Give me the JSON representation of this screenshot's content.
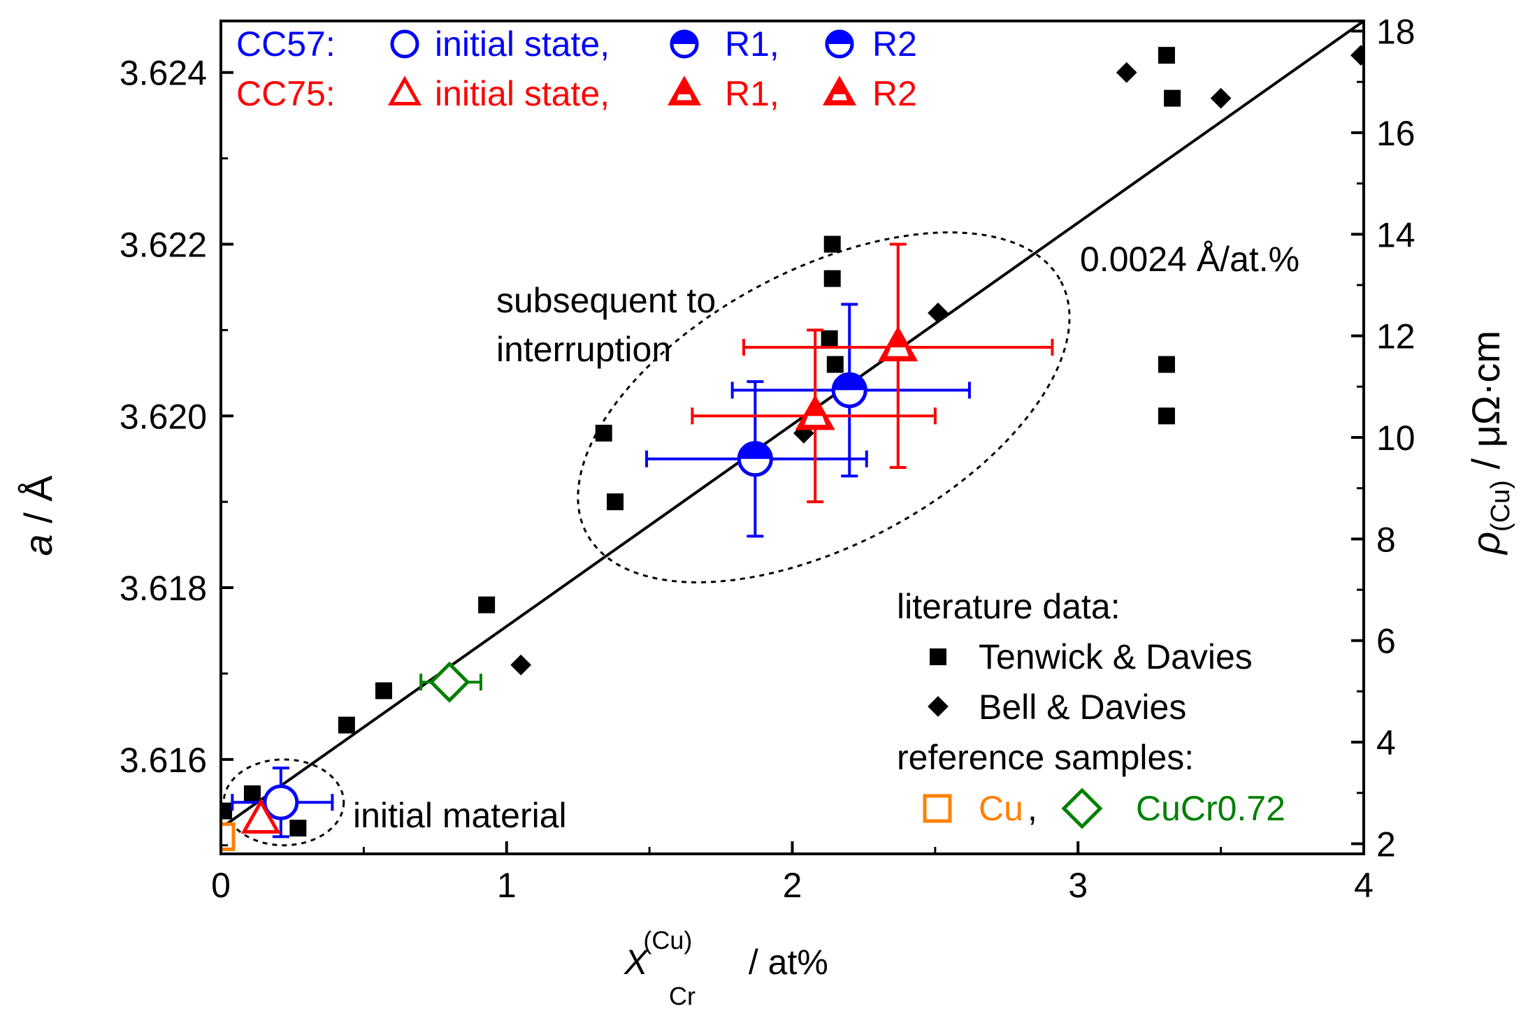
{
  "chart_data": {
    "type": "scatter",
    "title": "",
    "xlabel": {
      "main": "X",
      "superscript": "(Cu)",
      "subscript": "Cr",
      "unit": " / at%"
    },
    "ylabel_left": {
      "main": "a",
      "unit": " / Å"
    },
    "ylabel_right": {
      "main": "ρ",
      "subscript": "(Cu)",
      "unit": " / μΩ·cm"
    },
    "xlim": [
      0,
      4
    ],
    "ylim_left": [
      3.6149,
      3.6246
    ],
    "ylim_right": [
      1.8,
      18.2
    ],
    "x_ticks": [
      {
        "value": 0,
        "label": "0"
      },
      {
        "value": 1,
        "label": "1"
      },
      {
        "value": 2,
        "label": "2"
      },
      {
        "value": 3,
        "label": "3"
      },
      {
        "value": 4,
        "label": "4"
      }
    ],
    "y_left_ticks": [
      {
        "value": 3.616,
        "label": "3.616"
      },
      {
        "value": 3.618,
        "label": "3.618"
      },
      {
        "value": 3.62,
        "label": "3.620"
      },
      {
        "value": 3.622,
        "label": "3.622"
      },
      {
        "value": 3.624,
        "label": "3.624"
      }
    ],
    "y_right_ticks": [
      {
        "value": 2,
        "label": "2"
      },
      {
        "value": 4,
        "label": "4"
      },
      {
        "value": 6,
        "label": "6"
      },
      {
        "value": 8,
        "label": "8"
      },
      {
        "value": 10,
        "label": "10"
      },
      {
        "value": 12,
        "label": "12"
      },
      {
        "value": 14,
        "label": "14"
      },
      {
        "value": 16,
        "label": "16"
      },
      {
        "value": 18,
        "label": "18"
      }
    ],
    "fit_line": {
      "x": [
        0,
        4
      ],
      "y": [
        3.6152,
        3.6246
      ],
      "label": "0.0024 Å/at.%"
    },
    "series": [
      {
        "name": "Tenwick & Davies",
        "marker": "square",
        "color": "#000000",
        "points": [
          {
            "x": 0.01,
            "y": 3.6154
          },
          {
            "x": 0.11,
            "y": 3.6156
          },
          {
            "x": 0.27,
            "y": 3.6152
          },
          {
            "x": 0.44,
            "y": 3.6164
          },
          {
            "x": 0.57,
            "y": 3.6168
          },
          {
            "x": 0.93,
            "y": 3.6178
          },
          {
            "x": 1.34,
            "y": 3.6198
          },
          {
            "x": 1.38,
            "y": 3.619
          },
          {
            "x": 2.14,
            "y": 3.622
          },
          {
            "x": 2.14,
            "y": 3.6216
          },
          {
            "x": 2.13,
            "y": 3.6209
          },
          {
            "x": 2.15,
            "y": 3.6206
          },
          {
            "x": 3.31,
            "y": 3.6242
          },
          {
            "x": 3.33,
            "y": 3.6237
          },
          {
            "x": 3.31,
            "y": 3.6206
          },
          {
            "x": 3.31,
            "y": 3.62
          }
        ]
      },
      {
        "name": "Bell & Davies",
        "marker": "diamond",
        "color": "#000000",
        "points": [
          {
            "x": 1.05,
            "y": 3.6171
          },
          {
            "x": 2.04,
            "y": 3.6198
          },
          {
            "x": 2.51,
            "y": 3.6212
          },
          {
            "x": 3.17,
            "y": 3.624
          },
          {
            "x": 3.5,
            "y": 3.6237
          },
          {
            "x": 3.99,
            "y": 3.6242
          }
        ]
      },
      {
        "name": "CC57",
        "color": "#0000FF",
        "points": [
          {
            "label": "initial state",
            "marker": "circle-open",
            "x": 0.21,
            "y": 3.6155,
            "xerr": [
              0.04,
              0.39
            ],
            "yerr": [
              3.6151,
              3.6159
            ]
          },
          {
            "label": "R1",
            "marker": "circle-half",
            "x": 1.87,
            "y": 3.6195,
            "xerr": [
              1.49,
              2.26
            ],
            "yerr": [
              3.6186,
              3.6204
            ]
          },
          {
            "label": "R2",
            "marker": "circle-half",
            "x": 2.2,
            "y": 3.6203,
            "xerr": [
              1.79,
              2.62
            ],
            "yerr": [
              3.6193,
              3.6213
            ]
          }
        ]
      },
      {
        "name": "CC75",
        "color": "#FF0000",
        "points": [
          {
            "label": "initial state",
            "marker": "triangle-open",
            "x": 0.14,
            "y": 3.6153
          },
          {
            "label": "R1",
            "marker": "triangle-half",
            "x": 2.08,
            "y": 3.62,
            "xerr": [
              1.65,
              2.5
            ],
            "yerr": [
              3.619,
              3.621
            ]
          },
          {
            "label": "R2",
            "marker": "triangle-half",
            "x": 2.37,
            "y": 3.6208,
            "xerr": [
              1.83,
              2.91
            ],
            "yerr": [
              3.6194,
              3.622
            ]
          }
        ]
      },
      {
        "name": "Cu reference",
        "marker": "square-open",
        "color": "#FF8000",
        "points": [
          {
            "x": 0.0,
            "y": 3.6151
          }
        ]
      },
      {
        "name": "CuCr0.72 reference",
        "marker": "diamond-open",
        "color": "#008000",
        "points": [
          {
            "x": 0.8,
            "y": 3.6169,
            "xerr": [
              0.7,
              0.91
            ]
          }
        ]
      }
    ],
    "ellipses": [
      {
        "label": "initial material",
        "center": {
          "x": 0.22,
          "y": 3.6155
        },
        "rx_data": 0.21,
        "ry_data": 0.0005
      },
      {
        "label": "subsequent to interruption",
        "center": {
          "x": 2.11,
          "y": 3.6201
        },
        "rx_data": 0.94,
        "ry_data": 0.0016,
        "rotation": "tilted"
      }
    ],
    "annotations": {
      "slope": "0.0024 Å/at.%",
      "initial_material": "initial material",
      "subsequent_line1": "subsequent to",
      "subsequent_line2": "interruption"
    },
    "legend_top": {
      "row1": {
        "prefix": "CC57:",
        "initial": "initial state,",
        "r1": "R1,",
        "r2": "R2",
        "color": "#0000FF"
      },
      "row2": {
        "prefix": "CC75:",
        "initial": "initial state,",
        "r1": "R1,",
        "r2": "R2",
        "color": "#FF0000"
      }
    },
    "legend_bottom": {
      "literature_heading": "literature data:",
      "tenwick": "Tenwick & Davies",
      "bell": "Bell & Davies",
      "reference_heading": "reference samples:",
      "cu": "Cu",
      "comma": ",",
      "cucr": "CuCr0.72",
      "cu_color": "#FF8000",
      "cucr_color": "#008000"
    }
  }
}
